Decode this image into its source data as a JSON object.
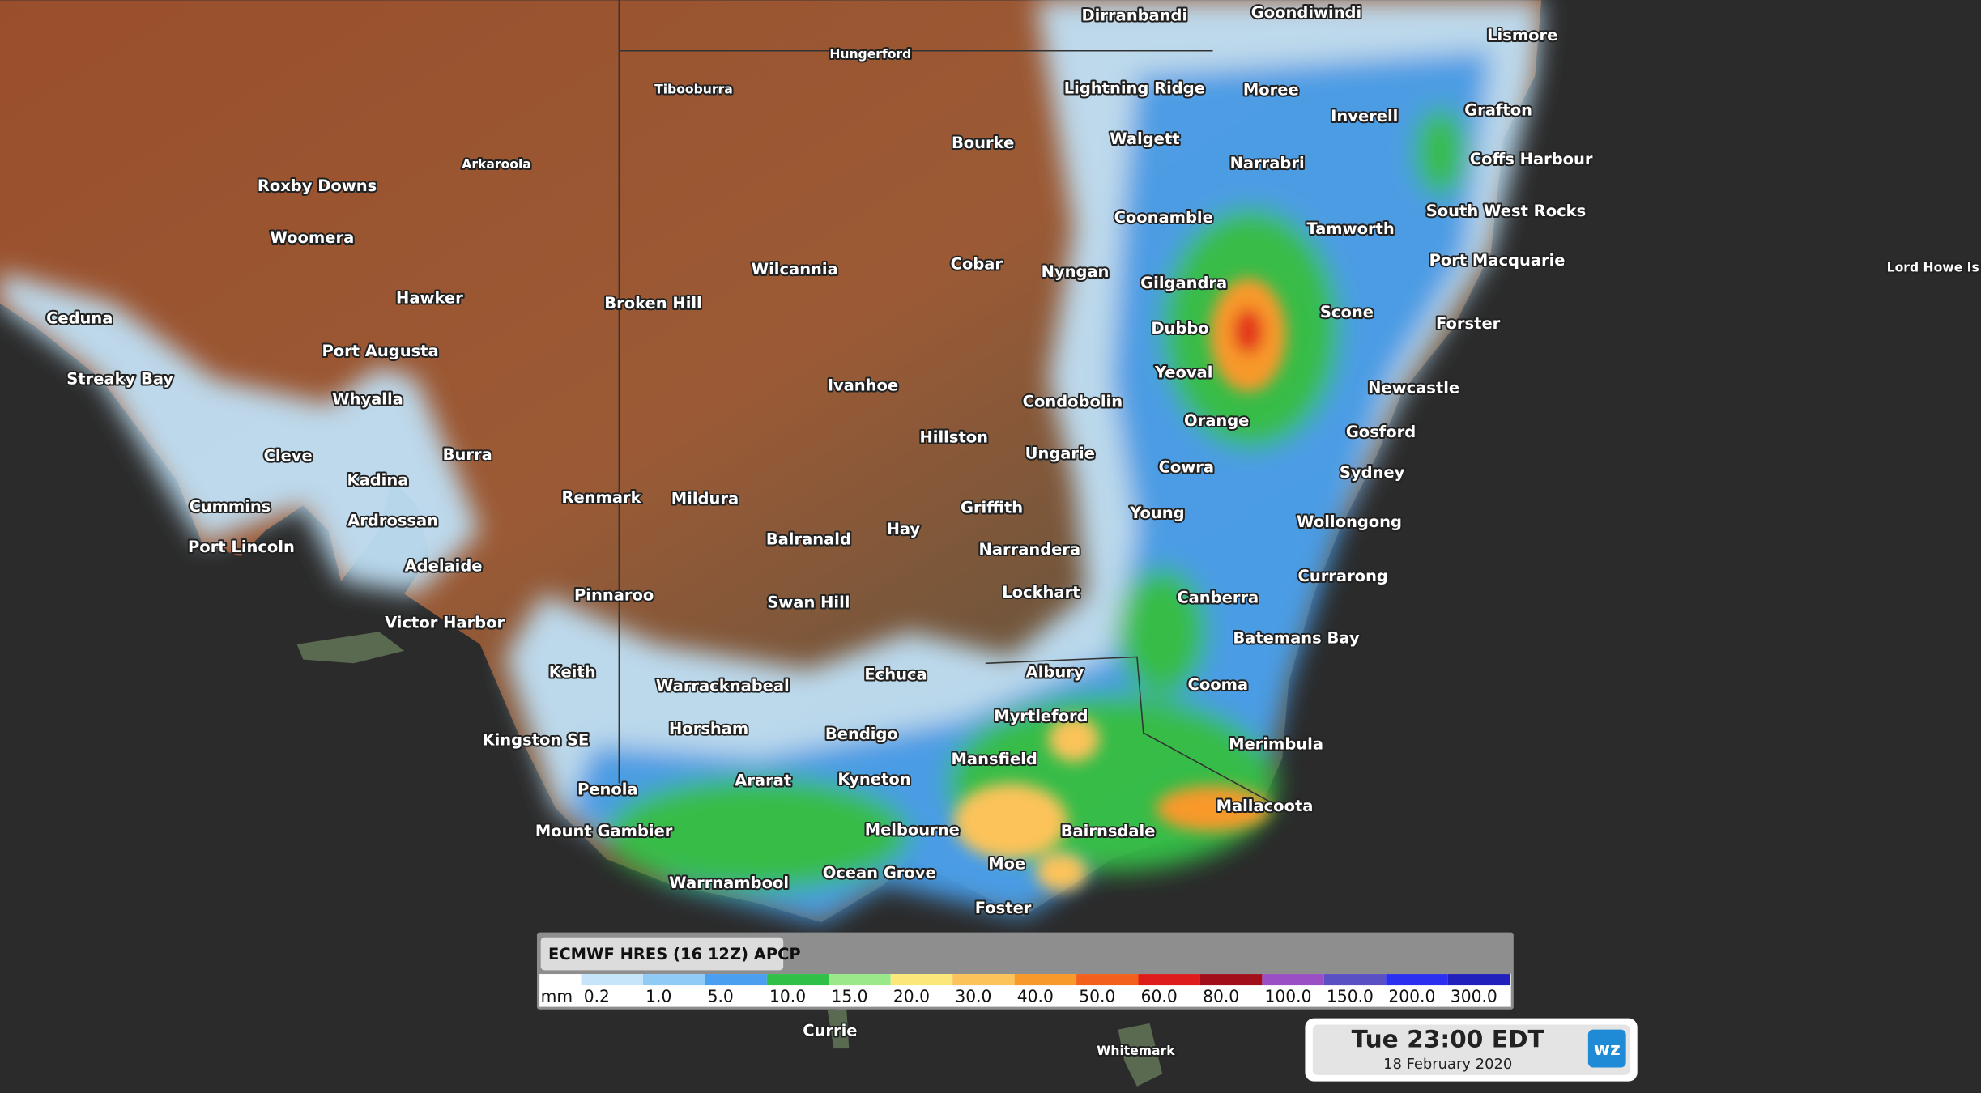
{
  "map": {
    "places": [
      "Dirranbandi",
      "Goondiwindi",
      "Lismore",
      "Hungerford",
      "Tibooburra",
      "Lightning Ridge",
      "Moree",
      "Inverell",
      "Grafton",
      "Arkaroola",
      "Bourke",
      "Walgett",
      "Narrabri",
      "Coffs Harbour",
      "Roxby Downs",
      "Coonamble",
      "Tamworth",
      "South West Rocks",
      "Woomera",
      "Port Macquarie",
      "Lord Howe Is",
      "Wilcannia",
      "Cobar",
      "Nyngan",
      "Gilgandra",
      "Hawker",
      "Broken Hill",
      "Scone",
      "Forster",
      "Ceduna",
      "Dubbo",
      "Port Augusta",
      "Yeoval",
      "Streaky Bay",
      "Ivanhoe",
      "Newcastle",
      "Whyalla",
      "Condobolin",
      "Orange",
      "Gosford",
      "Hillston",
      "Ungarie",
      "Cleve",
      "Burra",
      "Cowra",
      "Sydney",
      "Kadina",
      "Renmark",
      "Mildura",
      "Cummins",
      "Griffith",
      "Young",
      "Ardrossan",
      "Hay",
      "Wollongong",
      "Port Lincoln",
      "Balranald",
      "Narrandera",
      "Adelaide",
      "Currarong",
      "Lockhart",
      "Pinnaroo",
      "Canberra",
      "Swan Hill",
      "Victor Harbor",
      "Batemans Bay",
      "Keith",
      "Echuca",
      "Albury",
      "Cooma",
      "Warracknabeal",
      "Myrtleford",
      "Horsham",
      "Bendigo",
      "Kingston SE",
      "Merimbula",
      "Mansfield",
      "Ararat",
      "Kyneton",
      "Penola",
      "Mallacoota",
      "Mount Gambier",
      "Melbourne",
      "Bairnsdale",
      "Moe",
      "Ocean Grove",
      "Warrnambool",
      "Foster",
      "Currie",
      "Whitemark"
    ]
  },
  "legend": {
    "title": "ECMWF HRES (16 12Z) APCP",
    "unit": "mm",
    "levels": [
      {
        "label": "0.2",
        "color": "#c6e5fa"
      },
      {
        "label": "1.0",
        "color": "#8fcbf4"
      },
      {
        "label": "5.0",
        "color": "#4a9ff0"
      },
      {
        "label": "10.0",
        "color": "#30c048"
      },
      {
        "label": "15.0",
        "color": "#9be88a"
      },
      {
        "label": "20.0",
        "color": "#fbe77a"
      },
      {
        "label": "30.0",
        "color": "#fcc35a"
      },
      {
        "label": "40.0",
        "color": "#f8992b"
      },
      {
        "label": "50.0",
        "color": "#f2601b"
      },
      {
        "label": "60.0",
        "color": "#df1c1c"
      },
      {
        "label": "80.0",
        "color": "#a20f1a"
      },
      {
        "label": "100.0",
        "color": "#9a4fc5"
      },
      {
        "label": "150.0",
        "color": "#5a4fc3"
      },
      {
        "label": "200.0",
        "color": "#2a2ff0"
      },
      {
        "label": "300.0",
        "color": "#2220bd"
      }
    ]
  },
  "time": {
    "label": "Tue 23:00 EDT",
    "date": "18 February 2020"
  },
  "logo": "wz"
}
